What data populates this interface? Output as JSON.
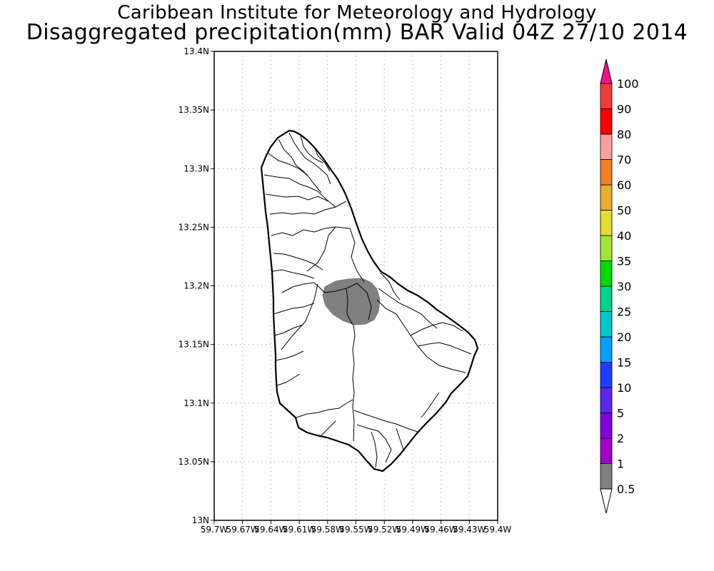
{
  "title_line1": "Caribbean Institute for Meteorology and Hydrology",
  "title_line2": "Disaggregated precipitation(mm) BAR Valid 04Z 27/10 2014",
  "map": {
    "lon_range": [
      -59.7,
      -59.4
    ],
    "lat_range": [
      13.0,
      13.4
    ],
    "grid": true,
    "x_ticks": [
      {
        "value": -59.7,
        "label": "59.7W"
      },
      {
        "value": -59.67,
        "label": "59.67W"
      },
      {
        "value": -59.64,
        "label": "59.64W"
      },
      {
        "value": -59.61,
        "label": "59.61W"
      },
      {
        "value": -59.58,
        "label": "59.58W"
      },
      {
        "value": -59.55,
        "label": "59.55W"
      },
      {
        "value": -59.52,
        "label": "59.52W"
      },
      {
        "value": -59.49,
        "label": "59.49W"
      },
      {
        "value": -59.46,
        "label": "59.46W"
      },
      {
        "value": -59.43,
        "label": "59.43W"
      },
      {
        "value": -59.4,
        "label": "59.4W"
      }
    ],
    "y_ticks": [
      {
        "value": 13.0,
        "label": "13N"
      },
      {
        "value": 13.05,
        "label": "13.05N"
      },
      {
        "value": 13.1,
        "label": "13.1N"
      },
      {
        "value": 13.15,
        "label": "13.15N"
      },
      {
        "value": 13.2,
        "label": "13.2N"
      },
      {
        "value": 13.25,
        "label": "13.25N"
      },
      {
        "value": 13.3,
        "label": "13.3N"
      },
      {
        "value": 13.35,
        "label": "13.35N"
      },
      {
        "value": 13.4,
        "label": "13.4N"
      }
    ],
    "rain_color": "#808080",
    "rain_category": "0.5-1"
  },
  "colorbar": {
    "levels": [
      {
        "label": "0.5",
        "color": "#ffffff"
      },
      {
        "label": "1",
        "color": "#808080"
      },
      {
        "label": "2",
        "color": "#a000c8"
      },
      {
        "label": "5",
        "color": "#8200dc"
      },
      {
        "label": "10",
        "color": "#5a28f0"
      },
      {
        "label": "15",
        "color": "#1e3cff"
      },
      {
        "label": "20",
        "color": "#00a0ff"
      },
      {
        "label": "25",
        "color": "#00c8c8"
      },
      {
        "label": "30",
        "color": "#00d28c"
      },
      {
        "label": "35",
        "color": "#00dc00"
      },
      {
        "label": "40",
        "color": "#a0e632"
      },
      {
        "label": "50",
        "color": "#e6dc32"
      },
      {
        "label": "60",
        "color": "#e6af2d"
      },
      {
        "label": "70",
        "color": "#f08228"
      },
      {
        "label": "80",
        "color": "#faa0a0"
      },
      {
        "label": "90",
        "color": "#fa0000"
      },
      {
        "label": "100",
        "color": "#f03c3c"
      }
    ],
    "top_arrow_color": "#f0148c",
    "bottom_arrow_color": "#ffffff"
  }
}
